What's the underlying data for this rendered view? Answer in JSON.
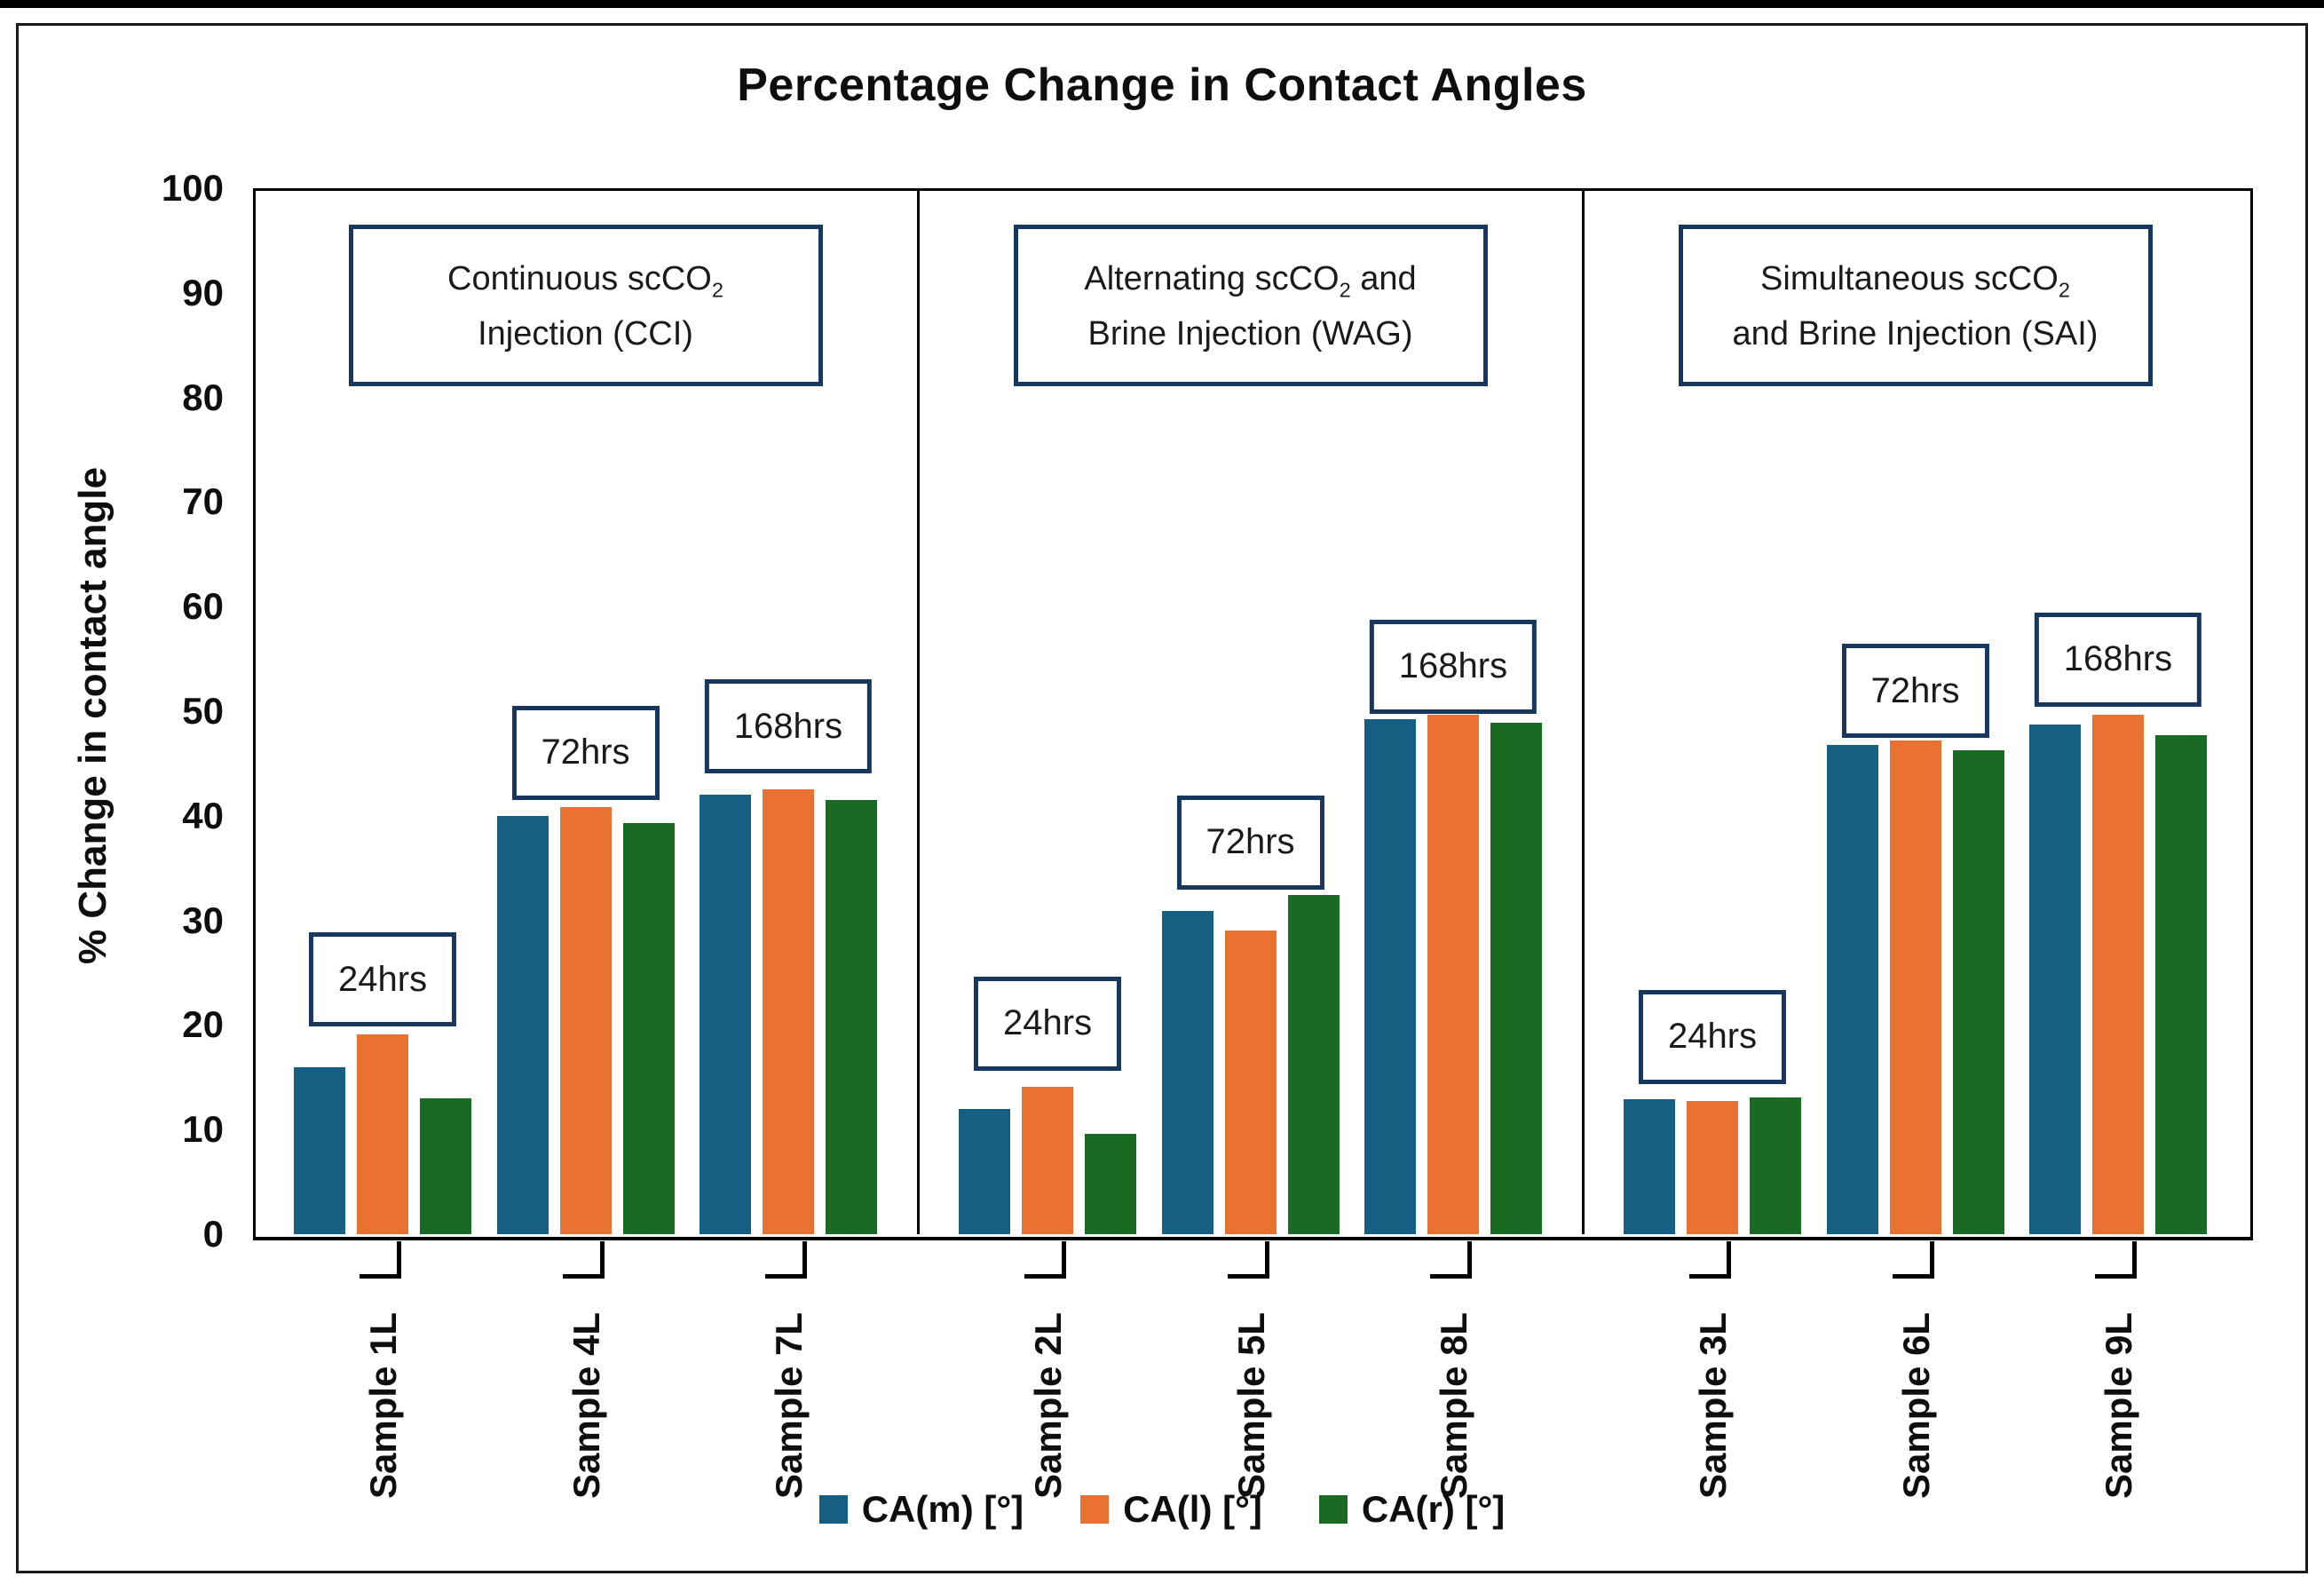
{
  "chart_data": {
    "type": "bar",
    "title": "Percentage Change in Contact Angles",
    "ylabel": "% Change in contact angle",
    "xlabel": "",
    "ylim": [
      0,
      100
    ],
    "ytick_step": 10,
    "ytick_labels": [
      "0",
      "10",
      "20",
      "30",
      "40",
      "50",
      "60",
      "70",
      "80",
      "90",
      "100"
    ],
    "grid": false,
    "legend_position": "bottom-center",
    "series_names": [
      "CA(m) [°]",
      "CA(l) [°]",
      "CA(r) [°]"
    ],
    "series_colors": [
      "#156082",
      "#E97132",
      "#196B24"
    ],
    "annotation_border_color": "#17375E",
    "panels": [
      {
        "id": "CCI",
        "description": {
          "line1_pre": "Continuous scCO",
          "line1_sub": "2",
          "line1_post": "",
          "line2": "Injection (CCI)"
        },
        "groups": [
          {
            "category": "Sample 1L",
            "time_label": "24hrs",
            "time_label_bottom_y": 20.7,
            "values": [
              16.0,
              19.1,
              13.0
            ]
          },
          {
            "category": "Sample 4L",
            "time_label": "72hrs",
            "time_label_bottom_y": 42.4,
            "values": [
              40.0,
              40.8,
              39.3
            ]
          },
          {
            "category": "Sample 7L",
            "time_label": "168hrs",
            "time_label_bottom_y": 44.9,
            "values": [
              42.0,
              42.5,
              41.5
            ]
          }
        ]
      },
      {
        "id": "WAG",
        "description": {
          "line1_pre": "Alternating scCO",
          "line1_sub": "2",
          "line1_post": " and",
          "line2": "Brine Injection (WAG)"
        },
        "groups": [
          {
            "category": "Sample 2L",
            "time_label": "24hrs",
            "time_label_bottom_y": 16.5,
            "values": [
              12.0,
              14.1,
              9.6
            ]
          },
          {
            "category": "Sample 5L",
            "time_label": "72hrs",
            "time_label_bottom_y": 33.8,
            "values": [
              30.9,
              29.0,
              32.4
            ]
          },
          {
            "category": "Sample 8L",
            "time_label": "168hrs",
            "time_label_bottom_y": 50.6,
            "values": [
              49.2,
              49.7,
              48.9
            ]
          }
        ]
      },
      {
        "id": "SAI",
        "description": {
          "line1_pre": "Simultaneous scCO",
          "line1_sub": "2",
          "line1_post": "",
          "line2": "and Brine Injection (SAI)"
        },
        "groups": [
          {
            "category": "Sample 3L",
            "time_label": "24hrs",
            "time_label_bottom_y": 15.2,
            "values": [
              12.9,
              12.7,
              13.1
            ]
          },
          {
            "category": "Sample 6L",
            "time_label": "72hrs",
            "time_label_bottom_y": 48.3,
            "values": [
              46.8,
              47.2,
              46.3
            ]
          },
          {
            "category": "Sample 9L",
            "time_label": "168hrs",
            "time_label_bottom_y": 51.3,
            "values": [
              48.7,
              49.7,
              47.7
            ]
          }
        ]
      }
    ]
  }
}
